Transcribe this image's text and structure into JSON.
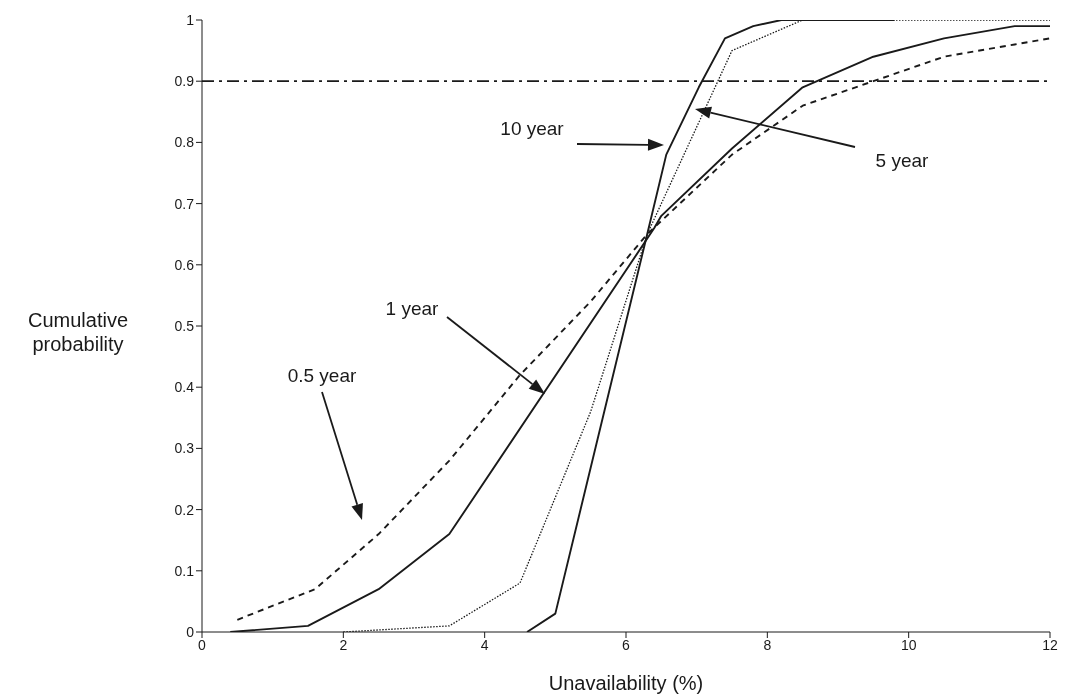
{
  "chart_data": {
    "type": "line",
    "xlabel": "Unavailability (%)",
    "ylabel": "Cumulative probability",
    "xlim": [
      0,
      12
    ],
    "xticks": [
      0,
      2,
      4,
      6,
      8,
      10,
      12
    ],
    "ylim": [
      0,
      1
    ],
    "yticks": [
      0,
      0.1,
      0.2,
      0.3,
      0.4,
      0.5,
      0.6,
      0.7,
      0.8,
      0.9,
      1
    ],
    "grid": false,
    "legend": false,
    "marker": "none",
    "series": [
      {
        "color": "#1a1a1a",
        "line_style": "dashed",
        "x": [
          0.5,
          1.6,
          2.5,
          3.5,
          4.5,
          5.5,
          6.3,
          7.5,
          8.5,
          9.5,
          10.5,
          11.5,
          12
        ],
        "values": [
          0.02,
          0.07,
          0.16,
          0.28,
          0.42,
          0.54,
          0.65,
          0.78,
          0.86,
          0.9,
          0.94,
          0.96,
          0.97
        ]
      },
      {
        "color": "#1a1a1a",
        "line_style": "solid",
        "x": [
          0.4,
          1.5,
          2.5,
          3.5,
          6.4,
          6.5,
          7.5,
          8.5,
          9.5,
          10.5,
          11.5,
          12
        ],
        "values": [
          0,
          0.01,
          0.07,
          0.16,
          0.66,
          0.68,
          0.79,
          0.89,
          0.94,
          0.97,
          0.99,
          0.99
        ]
      },
      {
        "color": "#1a1a1a",
        "line_style": "dotted",
        "x": [
          2,
          3.5,
          4.5,
          5.5,
          6.3,
          7.5,
          8.5,
          12
        ],
        "values": [
          0,
          0.01,
          0.08,
          0.36,
          0.65,
          0.95,
          1,
          1
        ]
      },
      {
        "color": "#1a1a1a",
        "line_style": "solid",
        "x": [
          4.6,
          5,
          6.3,
          6.57,
          7.03,
          7.4,
          7.8,
          8.2,
          9.8
        ],
        "values": [
          0,
          0.03,
          0.65,
          0.78,
          0.89,
          0.97,
          0.99,
          1,
          1
        ]
      }
    ],
    "ref_lines": [
      {
        "axis": "y",
        "value": 0.9,
        "line_style": "dashdot",
        "color": "#1a1a1a"
      }
    ],
    "annotations": [
      "0.5 year",
      "1 year",
      "10 year",
      "5 year"
    ]
  }
}
